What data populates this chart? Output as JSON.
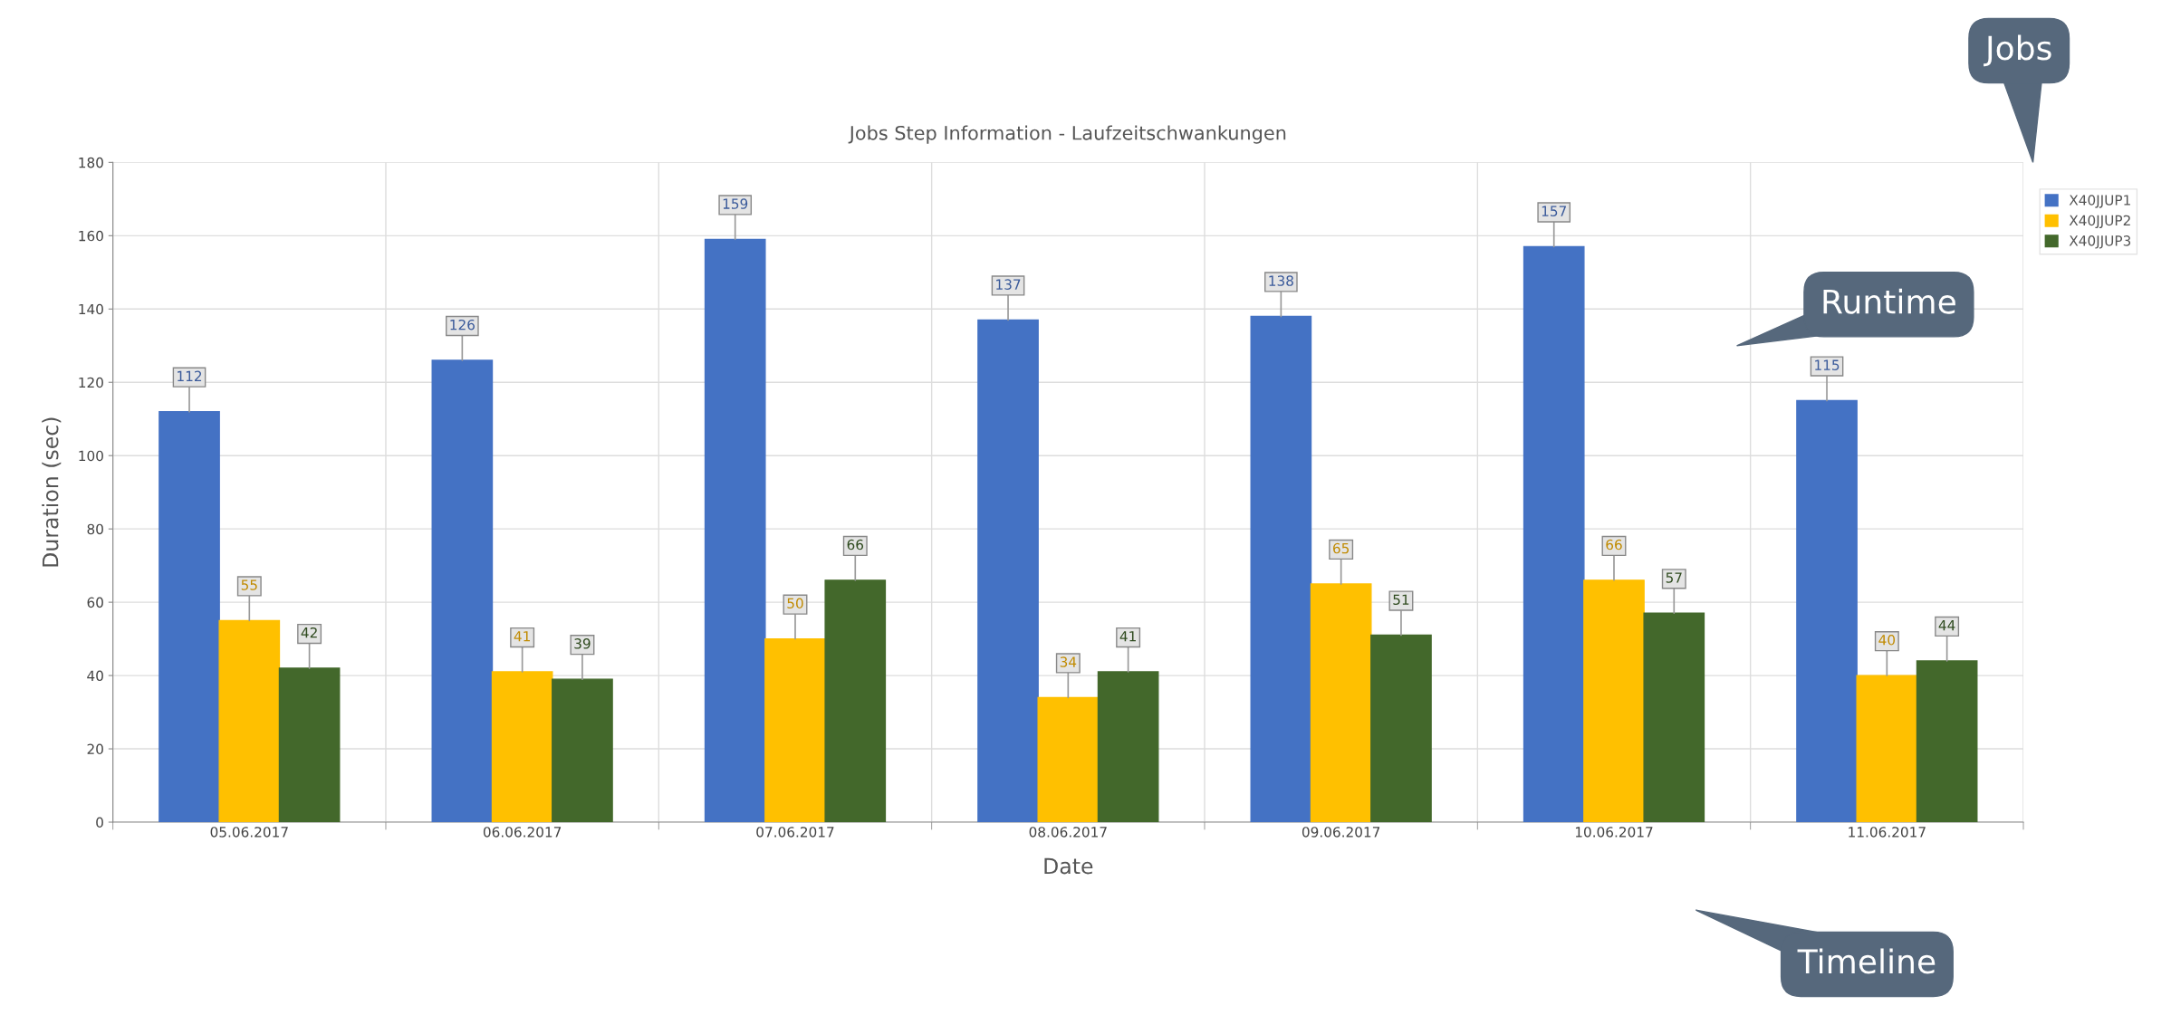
{
  "chart_data": {
    "type": "bar",
    "title": "Jobs Step Information - Laufzeitschwankungen",
    "xlabel": "Date",
    "ylabel": "Duration (sec)",
    "categories": [
      "05.06.2017",
      "06.06.2017",
      "07.06.2017",
      "08.06.2017",
      "09.06.2017",
      "10.06.2017",
      "11.06.2017"
    ],
    "series": [
      {
        "name": "X40JJUP1",
        "color": "#4472c4",
        "values": [
          112,
          126,
          159,
          137,
          138,
          157,
          115
        ]
      },
      {
        "name": "X40JJUP2",
        "color": "#ffc000",
        "values": [
          55,
          41,
          50,
          34,
          65,
          66,
          40
        ]
      },
      {
        "name": "X40JJUP3",
        "color": "#43682b",
        "values": [
          42,
          39,
          66,
          41,
          51,
          57,
          44
        ]
      }
    ],
    "ylim": [
      0,
      180
    ],
    "yticks": [
      0,
      20,
      40,
      60,
      80,
      100,
      120,
      140,
      160,
      180
    ],
    "grid": true,
    "legend": "top right",
    "data_labels": true,
    "annotations": [
      "Jobs",
      "Runtime",
      "Timeline"
    ]
  }
}
